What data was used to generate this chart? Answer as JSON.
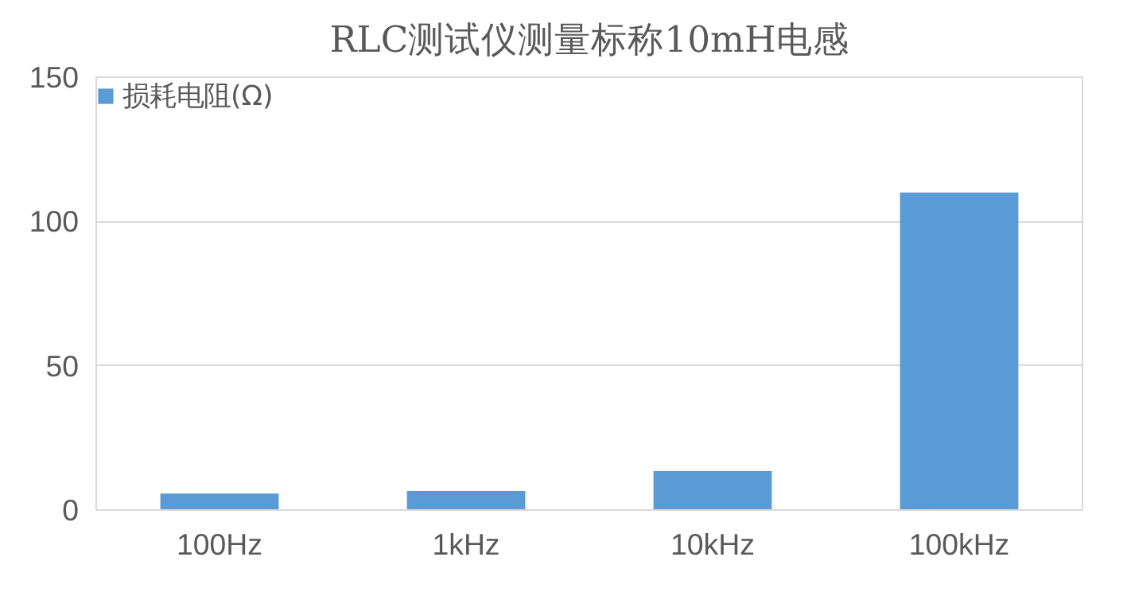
{
  "chart_data": {
    "type": "bar",
    "title": "RLC测试仪测量标称10mH电感",
    "categories": [
      "100Hz",
      "1kHz",
      "10kHz",
      "100kHz"
    ],
    "series": [
      {
        "name": "损耗电阻(Ω)",
        "color": "#5b9bd5",
        "values": [
          5.7,
          6.6,
          13.5,
          110
        ]
      }
    ],
    "ylim": [
      0,
      150
    ],
    "yticks": [
      0,
      50,
      100,
      150
    ],
    "grid": "y",
    "legend": "top left"
  }
}
